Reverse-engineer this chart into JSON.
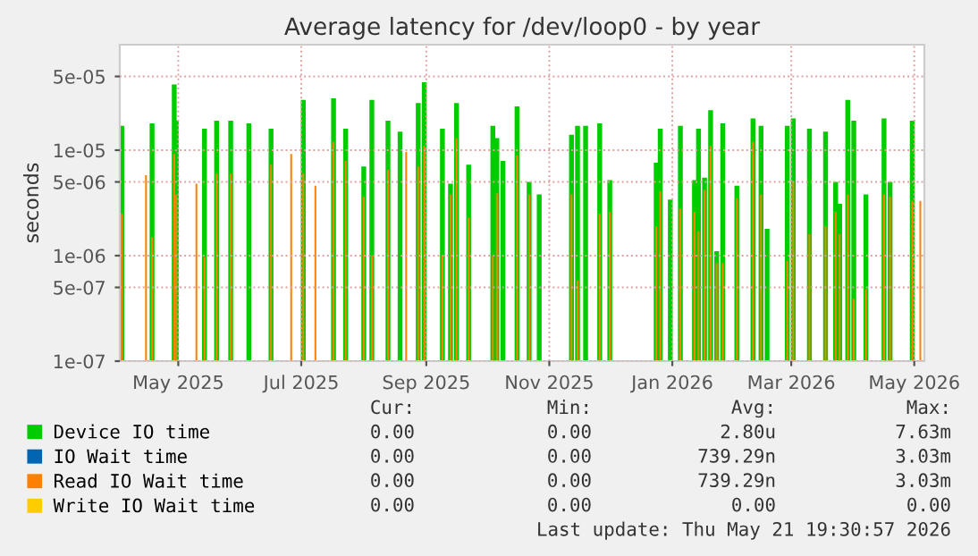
{
  "chart_data": {
    "type": "bar",
    "title": "Average latency for /dev/loop0 - by year",
    "ylabel": "seconds",
    "x": [
      "2025-04-03",
      "2025-04-15",
      "2025-04-18",
      "2025-04-29",
      "2025-04-30",
      "2025-05-10",
      "2025-05-14",
      "2025-05-20",
      "2025-05-27",
      "2025-06-05",
      "2025-06-16",
      "2025-06-26",
      "2025-07-02",
      "2025-07-08",
      "2025-07-17",
      "2025-07-23",
      "2025-08-01",
      "2025-08-05",
      "2025-08-13",
      "2025-08-19",
      "2025-08-22",
      "2025-08-28",
      "2025-08-31",
      "2025-09-09",
      "2025-09-13",
      "2025-09-16",
      "2025-09-22",
      "2025-10-04",
      "2025-10-06",
      "2025-10-09",
      "2025-10-16",
      "2025-10-22",
      "2025-10-27",
      "2025-11-12",
      "2025-11-15",
      "2025-11-19",
      "2025-11-26",
      "2025-12-01",
      "2025-12-24",
      "2025-12-26",
      "2025-12-31",
      "2026-01-05",
      "2026-01-12",
      "2026-01-14",
      "2026-01-17",
      "2026-01-20",
      "2026-01-23",
      "2026-01-26",
      "2026-02-02",
      "2026-02-10",
      "2026-02-14",
      "2026-02-17",
      "2026-02-27",
      "2026-03-02",
      "2026-03-10",
      "2026-03-18",
      "2026-03-23",
      "2026-03-25",
      "2026-03-29",
      "2026-04-01",
      "2026-04-07",
      "2026-04-16",
      "2026-04-19",
      "2026-04-30",
      "2026-05-04"
    ],
    "series": [
      {
        "name": "Device IO time",
        "color": "#00cc00",
        "values": [
          1.7e-05,
          null,
          1.8e-05,
          4.2e-05,
          1.9e-05,
          null,
          1.6e-05,
          1.9e-05,
          1.9e-05,
          1.8e-05,
          1.6e-05,
          null,
          3e-05,
          null,
          3.1e-05,
          1.6e-05,
          7e-06,
          3e-05,
          1.9e-05,
          1.5e-05,
          null,
          2.8e-05,
          4.4e-05,
          1.6e-05,
          4.8e-06,
          2.8e-05,
          7.3e-06,
          1.7e-05,
          1.3e-05,
          7.9e-06,
          2.6e-05,
          5e-06,
          3.8e-06,
          1.4e-05,
          1.7e-05,
          1.7e-05,
          1.8e-05,
          5.2e-06,
          7.6e-06,
          1.6e-05,
          3.4e-06,
          1.7e-05,
          5.2e-06,
          1.6e-05,
          5.5e-06,
          2.4e-05,
          1.1e-06,
          1.8e-05,
          4.6e-06,
          2e-05,
          1.7e-05,
          1.8e-06,
          1.7e-05,
          2e-05,
          1.6e-05,
          1.5e-05,
          5e-06,
          3.1e-06,
          3e-05,
          1.9e-05,
          3.8e-06,
          2e-05,
          5e-06,
          1.9e-05,
          null
        ]
      },
      {
        "name": "IO Wait time",
        "color": "#0066b3",
        "values": [
          null,
          null,
          null,
          null,
          null,
          null,
          null,
          null,
          null,
          null,
          null,
          null,
          null,
          null,
          null,
          null,
          null,
          null,
          null,
          null,
          null,
          null,
          null,
          null,
          null,
          null,
          null,
          null,
          null,
          null,
          null,
          null,
          null,
          null,
          null,
          null,
          null,
          null,
          null,
          null,
          null,
          null,
          null,
          null,
          null,
          null,
          null,
          null,
          null,
          null,
          null,
          null,
          null,
          null,
          null,
          null,
          null,
          null,
          null,
          null,
          null,
          null,
          null,
          null,
          null
        ]
      },
      {
        "name": "Read IO Wait time",
        "color": "#ff8000",
        "values": [
          2.5e-06,
          5.8e-06,
          1.5e-06,
          9.2e-06,
          3.8e-06,
          4.8e-06,
          9.6e-07,
          6e-06,
          6e-06,
          null,
          7.3e-06,
          9.2e-06,
          6e-06,
          4.6e-06,
          1.2e-05,
          7.9e-06,
          3.6e-06,
          1e-06,
          6.5e-06,
          null,
          9.6e-06,
          7e-06,
          1.1e-05,
          1e-06,
          3.8e-06,
          1.3e-05,
          2.3e-06,
          1e-06,
          3.9e-06,
          null,
          8.9e-06,
          3.8e-06,
          null,
          3.8e-06,
          5.8e-07,
          null,
          2.5e-06,
          2.6e-06,
          1.9e-06,
          4.1e-06,
          null,
          2.8e-06,
          2.6e-06,
          1.7e-06,
          4.2e-06,
          1.1e-05,
          8.5e-07,
          8.5e-07,
          3.5e-06,
          1.2e-05,
          3.8e-06,
          null,
          8.9e-07,
          5e-06,
          1.6e-06,
          1.9e-06,
          2.6e-06,
          1.6e-06,
          3.8e-06,
          3.9e-07,
          4.8e-07,
          3.8e-06,
          3.6e-06,
          3.3e-06,
          3.3e-06
        ]
      },
      {
        "name": "Write IO Wait time",
        "color": "#ffcc00",
        "values": [
          null,
          null,
          null,
          null,
          null,
          null,
          null,
          null,
          null,
          null,
          null,
          null,
          null,
          null,
          null,
          null,
          null,
          null,
          null,
          null,
          null,
          null,
          null,
          null,
          null,
          null,
          null,
          null,
          null,
          null,
          null,
          null,
          null,
          null,
          null,
          null,
          null,
          null,
          null,
          null,
          null,
          null,
          null,
          null,
          null,
          null,
          null,
          null,
          null,
          null,
          null,
          null,
          null,
          null,
          null,
          null,
          null,
          null,
          null,
          null,
          null,
          null,
          null,
          null,
          null
        ]
      }
    ],
    "log": "y",
    "xlim": [
      "2025-04-02",
      "2026-05-06"
    ],
    "xticks": [
      {
        "value": "2025-05-01",
        "label": "May 2025"
      },
      {
        "value": "2025-07-01",
        "label": "Jul 2025"
      },
      {
        "value": "2025-09-01",
        "label": "Sep 2025"
      },
      {
        "value": "2025-11-01",
        "label": "Nov 2025"
      },
      {
        "value": "2026-01-01",
        "label": "Jan 2026"
      },
      {
        "value": "2026-03-01",
        "label": "Mar 2026"
      },
      {
        "value": "2026-05-01",
        "label": "May 2026"
      }
    ],
    "ylim": [
      1e-07,
      0.0001
    ],
    "yticks": [
      {
        "value": 1e-07,
        "label": "1e-07"
      },
      {
        "value": 5e-07,
        "label": "5e-07"
      },
      {
        "value": 1e-06,
        "label": "1e-06"
      },
      {
        "value": 5e-06,
        "label": "5e-06"
      },
      {
        "value": 1e-05,
        "label": "1e-05"
      },
      {
        "value": 5e-05,
        "label": "5e-05"
      }
    ],
    "grid": true,
    "legend": "bottom",
    "annotations": [
      "Cur:",
      "Min:",
      "Avg:",
      "Max:",
      "0.00",
      "0.00",
      "2.80u",
      "7.63m",
      "0.00",
      "0.00",
      "739.29n",
      "3.03m",
      "0.00",
      "0.00",
      "739.29n",
      "3.03m",
      "0.00",
      "0.00",
      "0.00",
      "0.00",
      "Last update: Thu May 21 19:30:57 2026"
    ]
  }
}
